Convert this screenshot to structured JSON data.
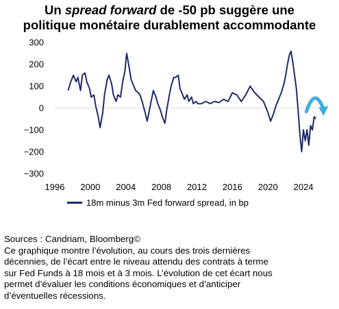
{
  "title": {
    "prefix": "Un ",
    "italic": "spread forward",
    "suffix": " de -50 pb suggère une",
    "line2": "politique monétaire durablement accommodante"
  },
  "colors": {
    "series": "#1c2a6b",
    "arrow": "#3aaee0",
    "grid": "#d9d9d9"
  },
  "chart_data": {
    "type": "line",
    "xlim": [
      1996,
      2027
    ],
    "ylim": [
      -300,
      300
    ],
    "x_ticks": [
      1996,
      2000,
      2004,
      2008,
      2012,
      2016,
      2020,
      2024
    ],
    "y_ticks": [
      300,
      200,
      100,
      0,
      -100,
      -200,
      -300
    ],
    "grid": "horizontal at 0 only",
    "series": [
      {
        "name": "18m minus 3m Fed forward spread, in bp",
        "x": [
          1997.5,
          1997.8,
          1998.1,
          1998.4,
          1998.6,
          1998.9,
          1999.1,
          1999.4,
          1999.6,
          1999.9,
          2000.1,
          2000.4,
          2000.6,
          2000.9,
          2001.1,
          2001.4,
          2001.6,
          2001.9,
          2002.1,
          2002.4,
          2002.6,
          2002.9,
          2003.1,
          2003.4,
          2003.6,
          2003.9,
          2004.1,
          2004.4,
          2004.6,
          2004.9,
          2005.1,
          2005.4,
          2005.6,
          2005.9,
          2006.1,
          2006.4,
          2006.6,
          2006.9,
          2007.1,
          2007.4,
          2007.6,
          2007.9,
          2008.1,
          2008.4,
          2008.6,
          2008.9,
          2009.1,
          2009.4,
          2009.6,
          2009.9,
          2010.1,
          2010.4,
          2010.6,
          2010.9,
          2011.1,
          2011.4,
          2011.6,
          2011.9,
          2012.1,
          2012.5,
          2013.0,
          2013.5,
          2014.0,
          2014.5,
          2015.0,
          2015.5,
          2016.0,
          2016.5,
          2017.0,
          2017.5,
          2018.0,
          2018.5,
          2019.0,
          2019.5,
          2020.0,
          2020.3,
          2020.6,
          2020.9,
          2021.2,
          2021.5,
          2021.8,
          2022.0,
          2022.2,
          2022.4,
          2022.6,
          2022.8,
          2023.0,
          2023.2,
          2023.4,
          2023.6,
          2023.8,
          2024.0,
          2024.2,
          2024.4,
          2024.6,
          2024.8,
          2025.0,
          2025.2,
          2025.4
        ],
        "values": [
          80,
          120,
          150,
          120,
          140,
          80,
          150,
          160,
          120,
          90,
          50,
          60,
          10,
          -40,
          -90,
          -20,
          60,
          130,
          150,
          110,
          60,
          30,
          60,
          50,
          110,
          170,
          250,
          180,
          130,
          100,
          80,
          70,
          60,
          20,
          -10,
          -60,
          -20,
          40,
          80,
          50,
          20,
          -10,
          -40,
          -70,
          -10,
          60,
          100,
          140,
          140,
          150,
          90,
          60,
          40,
          60,
          30,
          50,
          20,
          30,
          20,
          20,
          30,
          20,
          30,
          25,
          40,
          30,
          70,
          60,
          30,
          60,
          100,
          70,
          50,
          30,
          -20,
          -60,
          -30,
          10,
          40,
          70,
          110,
          150,
          200,
          240,
          260,
          210,
          150,
          90,
          -10,
          -120,
          -200,
          -100,
          -150,
          -100,
          -170,
          -80,
          -100,
          -40,
          -50
        ]
      }
    ],
    "annotations": [
      "curved arrow near 2025 pointing down-right"
    ]
  },
  "notes": {
    "sources": "Sources : Candriam, Bloomberg©",
    "line1": "Ce graphique montre l’évolution, au cours des trois dernières",
    "line2": "décennies, de l’écart entre le niveau attendu des contrats à terme",
    "line3": "sur Fed Funds à 18 mois et à 3 mois. L’évolution de cet écart nous",
    "line4": "permet d’évaluer les conditions économiques et d’anticiper",
    "line5": "d’éventuelles récessions."
  }
}
